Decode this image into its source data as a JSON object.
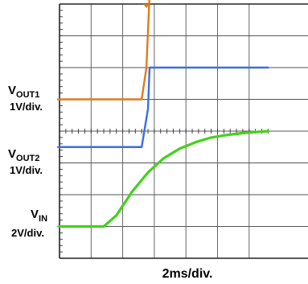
{
  "chart_data": {
    "type": "line",
    "xlabel": "2ms/div.",
    "x_divisions": 10,
    "x_visible_divisions": [
      0,
      6.6
    ],
    "y_divisions": 8,
    "grid": true,
    "channels": [
      {
        "name": "VOUT1",
        "label_main": "V",
        "label_sub": "OUT1",
        "scale": "1V/div.",
        "color": "#e07a1a",
        "ground_div": 5.0,
        "x": [
          0,
          2.6,
          2.75,
          2.85,
          3.0,
          6.6
        ],
        "y": [
          0,
          0,
          1.0,
          3.3,
          3.3,
          3.3
        ]
      },
      {
        "name": "VOUT2",
        "label_main": "V",
        "label_sub": "OUT2",
        "scale": "1V/div.",
        "color": "#3a6ee8",
        "ground_div": 3.5,
        "x": [
          0,
          2.6,
          2.8,
          2.85,
          3.0,
          6.6
        ],
        "y": [
          0,
          0,
          1.2,
          2.5,
          2.5,
          2.5
        ]
      },
      {
        "name": "VIN",
        "label_main": "V",
        "label_sub": "IN",
        "scale": "2V/div.",
        "color": "#44d11a",
        "ground_div": 1.0,
        "x": [
          0,
          1.4,
          1.8,
          2.3,
          2.8,
          3.3,
          3.8,
          4.3,
          4.8,
          5.3,
          5.8,
          6.3,
          6.6
        ],
        "y": [
          0,
          0,
          0.35,
          1.1,
          1.7,
          2.15,
          2.45,
          2.65,
          2.8,
          2.88,
          2.94,
          2.98,
          3.0
        ]
      }
    ]
  }
}
